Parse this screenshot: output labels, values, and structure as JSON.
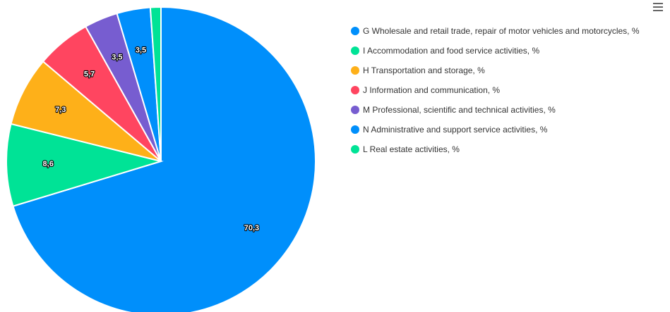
{
  "chart_data": {
    "type": "pie",
    "series": [
      {
        "name": "G Wholesale and retail trade, repair of motor vehicles and motorcycles, %",
        "value": 70.3,
        "label": "70,3",
        "color": "#008ffb"
      },
      {
        "name": "I Accommodation and food service activities, %",
        "value": 8.6,
        "label": "8,6",
        "color": "#00e396"
      },
      {
        "name": "H Transportation and storage, %",
        "value": 7.3,
        "label": "7,3",
        "color": "#feb019"
      },
      {
        "name": "J Information and communication, %",
        "value": 5.7,
        "label": "5,7",
        "color": "#ff4560"
      },
      {
        "name": "M Professional, scientific and technical activities, %",
        "value": 3.5,
        "label": "3,5",
        "color": "#775dd0"
      },
      {
        "name": "N Administrative and support service activities, %",
        "value": 3.5,
        "label": "3,5",
        "color": "#008ffb"
      },
      {
        "name": "L Real estate activities, %",
        "value": 1.1,
        "label": "",
        "color": "#00e396"
      }
    ],
    "legend_position": "right"
  },
  "toolbar": {
    "menu_icon": "hamburger-menu-icon"
  }
}
